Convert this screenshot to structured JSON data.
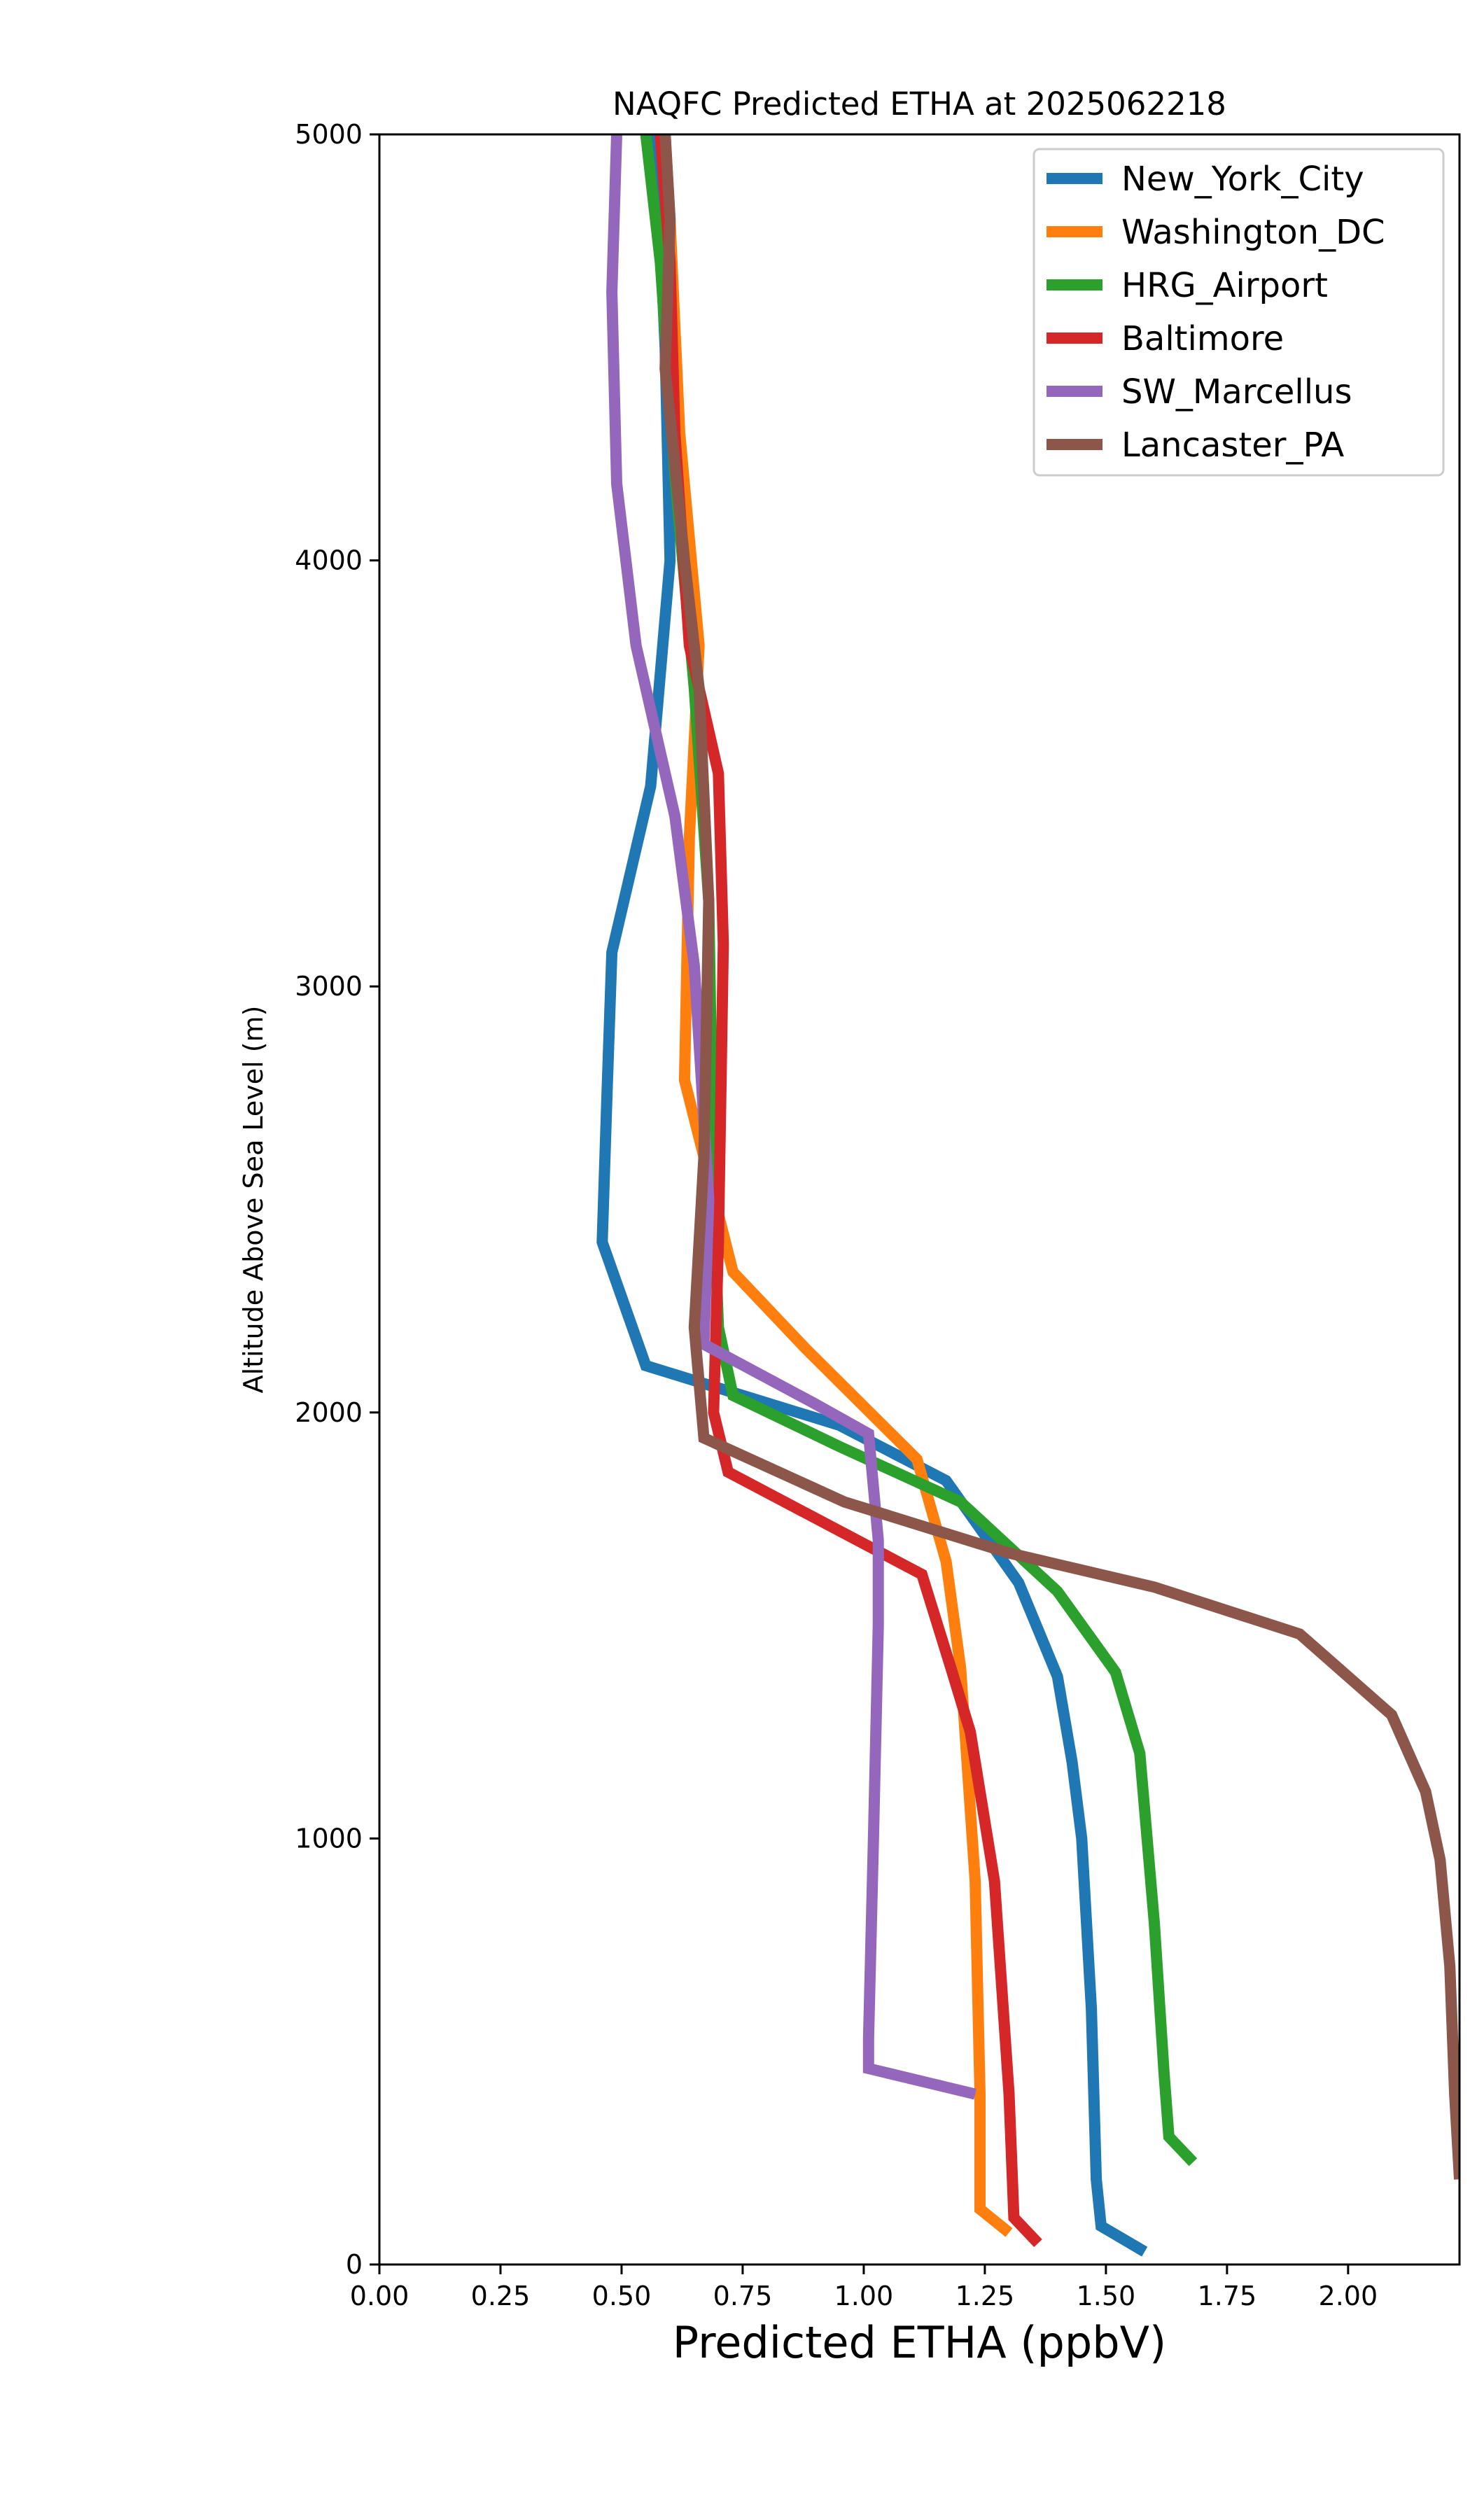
{
  "chart_data": {
    "type": "line",
    "title": "NAQFC Predicted ETHA at 2025062218",
    "xlabel": "Predicted ETHA (ppbV)",
    "ylabel": "Altitude Above Sea Level (m)",
    "xlim": [
      0.0,
      2.23
    ],
    "ylim": [
      0,
      5000
    ],
    "xticks": [
      "0.00",
      "0.25",
      "0.50",
      "0.75",
      "1.00",
      "1.25",
      "1.50",
      "1.75",
      "2.00"
    ],
    "xtick_values": [
      0.0,
      0.25,
      0.5,
      0.75,
      1.0,
      1.25,
      1.5,
      1.75,
      2.0
    ],
    "yticks": [
      "0",
      "1000",
      "2000",
      "3000",
      "4000",
      "5000"
    ],
    "ytick_values": [
      0,
      1000,
      2000,
      3000,
      4000,
      5000
    ],
    "grid": false,
    "legend_position": "top-right",
    "series": [
      {
        "name": "New_York_City",
        "color": "#1f77b4",
        "points": [
          [
            1.58,
            30
          ],
          [
            1.49,
            90
          ],
          [
            1.48,
            200
          ],
          [
            1.47,
            600
          ],
          [
            1.45,
            1000
          ],
          [
            1.43,
            1180
          ],
          [
            1.4,
            1380
          ],
          [
            1.32,
            1600
          ],
          [
            1.17,
            1840
          ],
          [
            0.95,
            1970
          ],
          [
            0.55,
            2110
          ],
          [
            0.46,
            2400
          ],
          [
            0.47,
            2750
          ],
          [
            0.48,
            3080
          ],
          [
            0.56,
            3470
          ],
          [
            0.6,
            4000
          ],
          [
            0.59,
            4500
          ],
          [
            0.57,
            5000
          ]
        ]
      },
      {
        "name": "Washington_DC",
        "color": "#ff7f0e",
        "points": [
          [
            1.3,
            75
          ],
          [
            1.24,
            130
          ],
          [
            1.24,
            400
          ],
          [
            1.23,
            900
          ],
          [
            1.2,
            1400
          ],
          [
            1.17,
            1650
          ],
          [
            1.11,
            1890
          ],
          [
            0.88,
            2150
          ],
          [
            0.73,
            2330
          ],
          [
            0.63,
            2780
          ],
          [
            0.64,
            3350
          ],
          [
            0.66,
            3800
          ],
          [
            0.62,
            4300
          ],
          [
            0.6,
            4800
          ],
          [
            0.59,
            5000
          ]
        ]
      },
      {
        "name": "HRG_Airport",
        "color": "#2ca02c",
        "points": [
          [
            1.68,
            240
          ],
          [
            1.63,
            300
          ],
          [
            1.62,
            450
          ],
          [
            1.6,
            800
          ],
          [
            1.57,
            1200
          ],
          [
            1.52,
            1390
          ],
          [
            1.4,
            1580
          ],
          [
            1.2,
            1790
          ],
          [
            0.95,
            1920
          ],
          [
            0.73,
            2040
          ],
          [
            0.7,
            2200
          ],
          [
            0.69,
            2500
          ],
          [
            0.68,
            3200
          ],
          [
            0.65,
            3700
          ],
          [
            0.61,
            4200
          ],
          [
            0.58,
            4700
          ],
          [
            0.55,
            5000
          ]
        ]
      },
      {
        "name": "Baltimore",
        "color": "#d62728",
        "points": [
          [
            1.36,
            50
          ],
          [
            1.31,
            110
          ],
          [
            1.3,
            400
          ],
          [
            1.27,
            900
          ],
          [
            1.22,
            1250
          ],
          [
            1.18,
            1400
          ],
          [
            1.12,
            1620
          ],
          [
            0.97,
            1710
          ],
          [
            0.72,
            1860
          ],
          [
            0.69,
            2000
          ],
          [
            0.7,
            2400
          ],
          [
            0.71,
            3100
          ],
          [
            0.7,
            3500
          ],
          [
            0.64,
            3800
          ],
          [
            0.61,
            4300
          ],
          [
            0.6,
            4700
          ],
          [
            0.58,
            5000
          ]
        ]
      },
      {
        "name": "SW_Marcellus",
        "color": "#9467bd",
        "points": [
          [
            1.23,
            400
          ],
          [
            1.01,
            460
          ],
          [
            1.01,
            530
          ],
          [
            1.02,
            1000
          ],
          [
            1.03,
            1500
          ],
          [
            1.03,
            1700
          ],
          [
            1.01,
            1950
          ],
          [
            0.9,
            2020
          ],
          [
            0.67,
            2160
          ],
          [
            0.68,
            2500
          ],
          [
            0.65,
            3050
          ],
          [
            0.61,
            3400
          ],
          [
            0.53,
            3800
          ],
          [
            0.49,
            4180
          ],
          [
            0.48,
            4630
          ],
          [
            0.49,
            5000
          ]
        ]
      },
      {
        "name": "Lancaster_PA",
        "color": "#8c564b",
        "points": [
          [
            2.23,
            200
          ],
          [
            2.22,
            400
          ],
          [
            2.21,
            700
          ],
          [
            2.19,
            950
          ],
          [
            2.16,
            1110
          ],
          [
            2.09,
            1290
          ],
          [
            1.9,
            1480
          ],
          [
            1.6,
            1590
          ],
          [
            1.3,
            1670
          ],
          [
            0.96,
            1790
          ],
          [
            0.67,
            1940
          ],
          [
            0.65,
            2200
          ],
          [
            0.67,
            2600
          ],
          [
            0.68,
            3200
          ],
          [
            0.66,
            3700
          ],
          [
            0.63,
            4000
          ],
          [
            0.59,
            4450
          ],
          [
            0.6,
            4800
          ],
          [
            0.59,
            5000
          ]
        ]
      }
    ]
  }
}
